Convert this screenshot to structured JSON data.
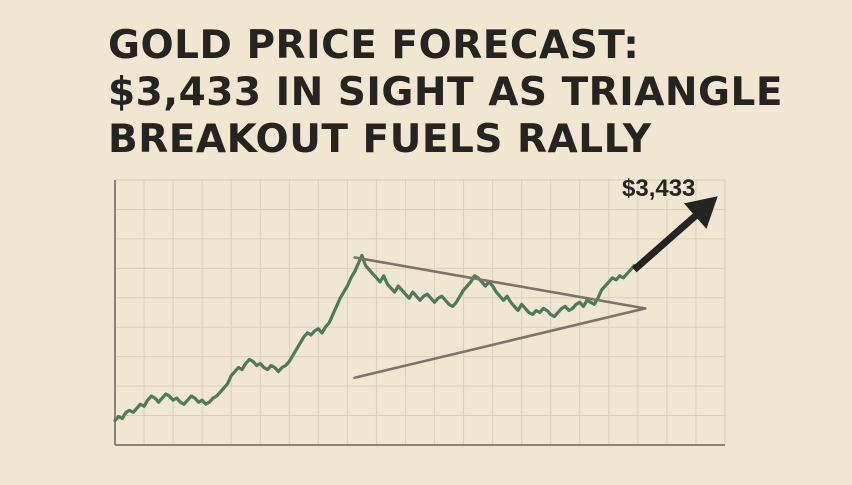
{
  "headline": {
    "line1": "GOLD PRICE FORECAST:",
    "line2": "$3,433 IN SIGHT AS TRIANGLE",
    "line3": "BREAKOUT FUELS RALLY"
  },
  "chart_data": {
    "type": "line",
    "title": "",
    "xlabel": "",
    "ylabel": "",
    "grid": true,
    "colors": {
      "series": "#4d7a57",
      "pattern": "#7a746b",
      "arrow": "#262420",
      "grid": "#d9cfbc"
    },
    "series": [
      {
        "values": [
          12,
          14,
          13,
          16,
          17,
          16,
          18,
          20,
          19,
          22,
          24,
          23,
          21,
          23,
          25,
          24,
          22,
          23,
          21,
          20,
          22,
          24,
          23,
          21,
          22,
          20,
          21,
          23,
          24,
          26,
          28,
          30,
          34,
          36,
          38,
          37,
          40,
          42,
          41,
          39,
          40,
          38,
          37,
          39,
          38,
          36,
          38,
          39,
          41,
          44,
          47,
          50,
          53,
          55,
          54,
          56,
          57,
          55,
          58,
          60,
          64,
          68,
          72,
          75,
          78,
          82,
          85,
          89,
          93,
          88,
          86,
          84,
          82,
          80,
          83,
          79,
          77,
          75,
          78,
          76,
          74,
          72,
          75,
          73,
          71,
          73,
          74,
          72,
          70,
          72,
          73,
          71,
          69,
          68,
          70,
          73,
          76,
          78,
          80,
          83,
          82,
          80,
          78,
          80,
          78,
          75,
          73,
          71,
          73,
          70,
          68,
          66,
          69,
          67,
          65,
          64,
          66,
          65,
          67,
          66,
          64,
          63,
          65,
          67,
          68,
          66,
          67,
          69,
          70,
          68,
          71,
          70,
          69,
          72,
          76,
          78,
          80,
          82,
          81,
          83,
          82,
          84,
          86,
          88
        ]
      }
    ],
    "pattern": {
      "type": "symmetrical-triangle",
      "upper_line": {
        "start": [
          66,
          92
        ],
        "end": [
          146,
          67
        ]
      },
      "lower_line": {
        "start": [
          66,
          33
        ],
        "end": [
          146,
          67
        ]
      }
    },
    "breakout_arrow": {
      "start": [
        143,
        86
      ],
      "end": [
        166,
        122
      ]
    },
    "target_label": "$3,433",
    "ylim": [
      0,
      130
    ],
    "xlim": [
      0,
      168
    ]
  }
}
